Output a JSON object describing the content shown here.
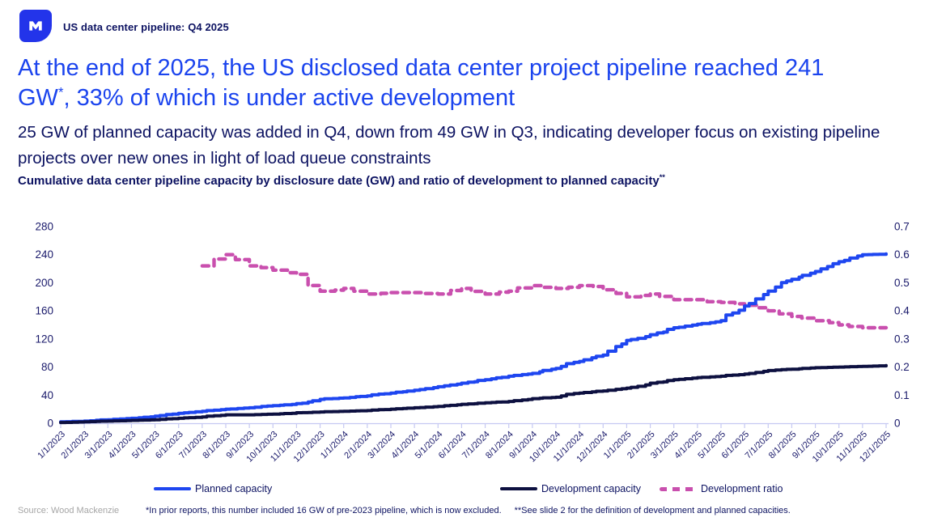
{
  "header": {
    "brand": "US data center pipeline: Q4 2025",
    "logo_icon": "wood-mackenzie-mark",
    "logo_color": "#2334ea"
  },
  "headline": {
    "line1": "At the end of 2025, the US disclosed data center project pipeline reached 241",
    "line2_pre_sup": "GW",
    "sup": "*",
    "line2_post_sup": ", 33% of which is under active development",
    "color": "#1b44ee"
  },
  "subtitle": {
    "line1": "25 GW of planned capacity was added in Q4, down from 49 GW in Q3, indicating developer focus on existing pipeline",
    "line2": "projects over new ones in light of load queue constraints"
  },
  "chart_title": {
    "text": "Cumulative data center pipeline capacity by disclosure date (GW) and ratio of development to planned capacity",
    "sup": "**"
  },
  "chart_data": {
    "type": "line",
    "title": "Cumulative data center pipeline capacity by disclosure date (GW) and ratio of development to planned capacity",
    "x_labels": [
      "1/1/2023",
      "2/1/2023",
      "3/1/2023",
      "4/1/2023",
      "5/1/2023",
      "6/1/2023",
      "7/1/2023",
      "8/1/2023",
      "9/1/2023",
      "10/1/2023",
      "11/1/2023",
      "12/1/2023",
      "1/1/2024",
      "2/1/2024",
      "3/1/2024",
      "4/1/2024",
      "5/1/2024",
      "6/1/2024",
      "7/1/2024",
      "8/1/2024",
      "9/1/2024",
      "10/1/2024",
      "11/1/2024",
      "12/1/2024",
      "1/1/2025",
      "2/1/2025",
      "3/1/2025",
      "4/1/2025",
      "5/1/2025",
      "6/1/2025",
      "7/1/2025",
      "8/1/2025",
      "9/1/2025",
      "10/1/2025",
      "11/1/2025",
      "12/1/2025"
    ],
    "y_left": {
      "label": "GW",
      "ticks": [
        "280",
        "240",
        "200",
        "160",
        "120",
        "80",
        "40",
        "0"
      ],
      "min": 0,
      "max": 280
    },
    "y_right": {
      "label": "ratio",
      "ticks": [
        "0.7",
        "0.6",
        "0.5",
        "0.4",
        "0.3",
        "0.2",
        "0.1",
        "0"
      ],
      "min": 0,
      "max": 0.7
    },
    "grid": false,
    "legend_position": "bottom",
    "series": [
      {
        "name": "Planned capacity",
        "axis": "left",
        "color": "#1e46f0",
        "style": "solid",
        "start_index": 0,
        "values": [
          2,
          3,
          5,
          7,
          10,
          14,
          17,
          20,
          22,
          25,
          28,
          34,
          36,
          39,
          43,
          47,
          52,
          57,
          62,
          67,
          71,
          78,
          88,
          97,
          118,
          126,
          136,
          141,
          146,
          167,
          188,
          205,
          216,
          230,
          240,
          241
        ]
      },
      {
        "name": "Development capacity",
        "axis": "left",
        "color": "#0d1040",
        "style": "solid",
        "start_index": 0,
        "values": [
          1,
          2,
          3,
          4,
          5,
          7,
          9,
          12,
          12,
          13,
          15,
          16,
          17,
          18,
          20,
          22,
          24,
          27,
          29,
          31,
          35,
          37,
          43,
          46,
          50,
          57,
          62,
          65,
          67,
          70,
          75,
          77,
          79,
          80,
          81,
          82
        ]
      },
      {
        "name": "Development ratio",
        "axis": "right",
        "color": "#c94fae",
        "style": "dashed",
        "start_index": 6,
        "values": [
          0.56,
          0.6,
          0.56,
          0.545,
          0.53,
          0.47,
          0.48,
          0.46,
          0.465,
          0.465,
          0.46,
          0.48,
          0.46,
          0.47,
          0.49,
          0.48,
          0.49,
          0.475,
          0.45,
          0.46,
          0.44,
          0.44,
          0.43,
          0.42,
          0.4,
          0.38,
          0.365,
          0.35,
          0.34,
          0.34
        ]
      }
    ]
  },
  "footer": {
    "source": "Source: Wood Mackenzie",
    "footnote1": "*In prior reports, this number included 16 GW of pre-2023 pipeline, which is now excluded.",
    "footnote2": "**See slide 2 for the definition of development and planned capacities."
  }
}
